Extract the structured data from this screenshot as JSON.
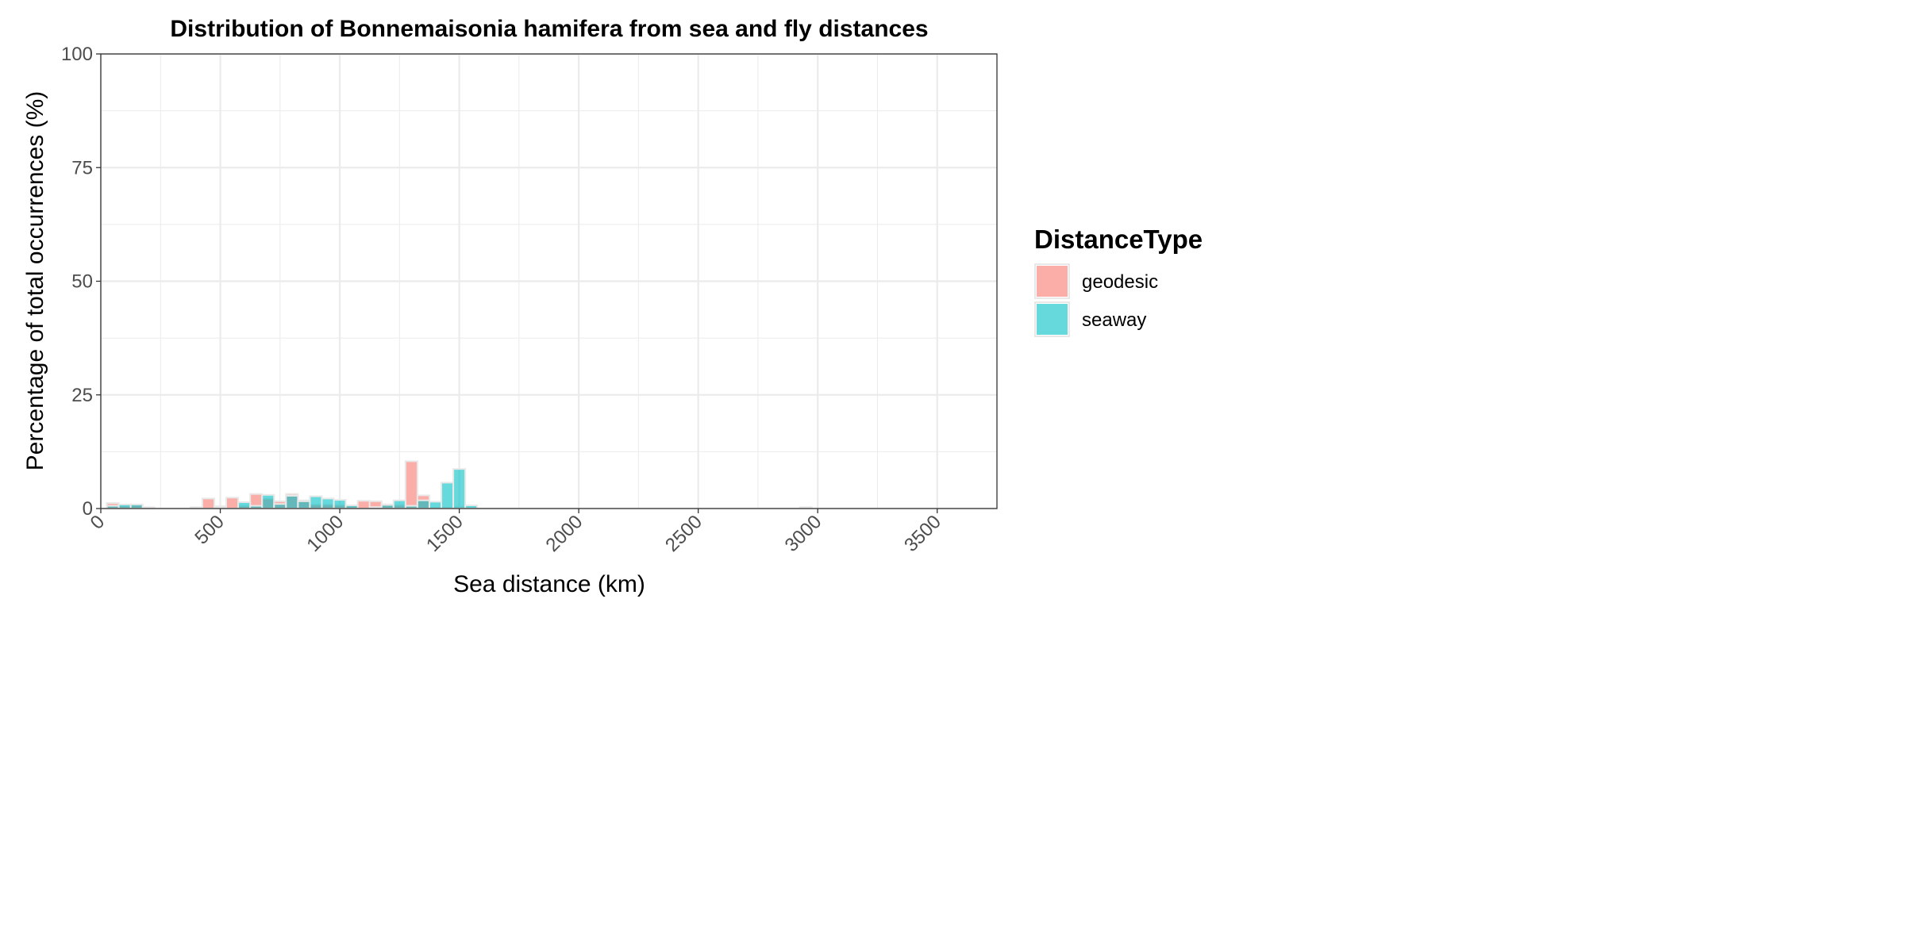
{
  "chart_data": {
    "type": "bar",
    "title": "Distribution of Bonnemaisonia hamifera from sea and fly distances",
    "xlabel": "Sea distance (km)",
    "ylabel": "Percentage of total occurrences (%)",
    "xlim": [
      0,
      3750
    ],
    "ylim": [
      0,
      100
    ],
    "x_ticks": [
      "0",
      "500",
      "1000",
      "1500",
      "2000",
      "2500",
      "3000",
      "3500"
    ],
    "y_ticks": [
      "0",
      "25",
      "50",
      "75",
      "100"
    ],
    "bin_width": 50,
    "grid": true,
    "legend": {
      "title": "DistanceType",
      "position": "right",
      "entries": [
        "geodesic",
        "seaway"
      ]
    },
    "colors": {
      "geodesic": "#F8766D",
      "seaway": "#00BFC4",
      "bar_outline": "#e8e8e8",
      "grid": "#ebebeb",
      "panel_border": "#333333"
    },
    "series": [
      {
        "name": "geodesic",
        "x": [
          50,
          100,
          150,
          200,
          400,
          450,
          500,
          550,
          600,
          650,
          700,
          750,
          800,
          850,
          900,
          950,
          1000,
          1050,
          1100,
          1150,
          1200,
          1250,
          1300,
          1350,
          1400,
          1450,
          1500,
          1550,
          2950
        ],
        "values": [
          1.2,
          0.6,
          0.8,
          0.3,
          0.3,
          2.2,
          0.5,
          2.4,
          0.6,
          3.2,
          2.2,
          1.6,
          3.2,
          1.8,
          0.9,
          0.9,
          0.8,
          0.6,
          1.7,
          1.6,
          0.9,
          0.8,
          10.4,
          2.9,
          0.2,
          0.2,
          0.4,
          0.2,
          0.3
        ]
      },
      {
        "name": "seaway",
        "x": [
          50,
          100,
          150,
          500,
          600,
          650,
          700,
          750,
          800,
          850,
          900,
          950,
          1000,
          1050,
          1150,
          1200,
          1250,
          1300,
          1350,
          1400,
          1450,
          1500,
          1550
        ],
        "values": [
          0.6,
          0.9,
          0.9,
          0.2,
          1.4,
          0.6,
          3.0,
          1.0,
          2.8,
          1.6,
          2.7,
          2.2,
          1.9,
          0.7,
          0.3,
          0.8,
          1.8,
          0.6,
          1.8,
          1.5,
          5.7,
          8.7,
          0.7
        ]
      }
    ]
  }
}
